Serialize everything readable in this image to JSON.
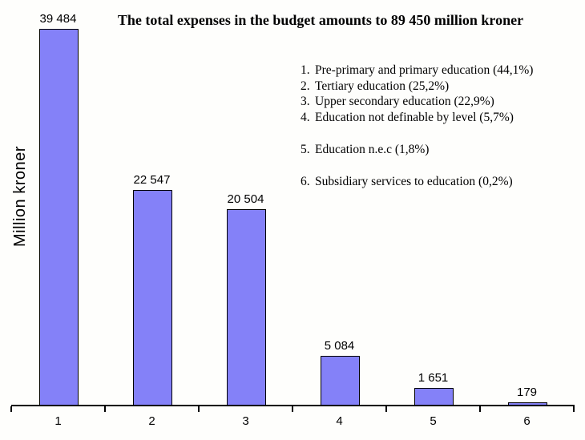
{
  "chart_data": {
    "type": "bar",
    "title": "The total expenses in the budget amounts to 89 450 million kroner",
    "ylabel": "Million kroner",
    "xlabel": "",
    "categories": [
      "1",
      "2",
      "3",
      "4",
      "5",
      "6"
    ],
    "values": [
      39484,
      22547,
      20504,
      5084,
      1651,
      179
    ],
    "value_labels": [
      "39 484",
      "22 547",
      "20 504",
      "5 084",
      "1 651",
      "179"
    ],
    "ylim": [
      0,
      39484
    ],
    "grid": false,
    "axes_shown": [
      "bottom"
    ],
    "bar_color": "#8481f8",
    "bar_border_color": "#000000",
    "background_color": "#fefefc",
    "legend_position": "upper-right-inside",
    "legend": [
      {
        "num": "1.",
        "label": "Pre-primary and primary education (44,1%)",
        "spaced": false
      },
      {
        "num": "2.",
        "label": "Tertiary education (25,2%)",
        "spaced": false
      },
      {
        "num": "3.",
        "label": "Upper secondary education (22,9%)",
        "spaced": false
      },
      {
        "num": "4.",
        "label": "Education not definable by level (5,7%)",
        "spaced": false
      },
      {
        "num": "5.",
        "label": "Education n.e.c (1,8%)",
        "spaced": true
      },
      {
        "num": "6.",
        "label": "Subsidiary services to education (0,2%)",
        "spaced": true
      }
    ]
  }
}
